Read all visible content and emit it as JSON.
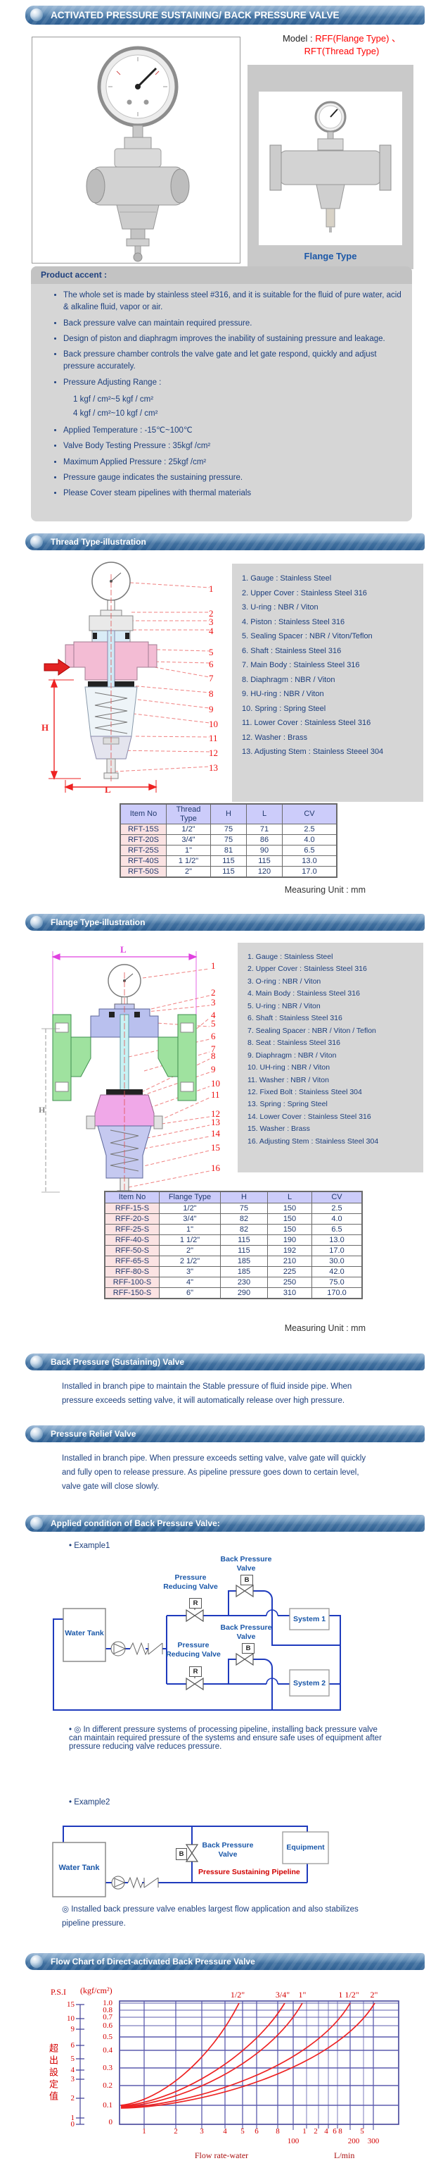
{
  "page": {
    "header": "ACTIVATED PRESSURE SUSTAINING/ BACK PRESSURE VALVE",
    "model_label": "Model :",
    "model_line1": "RFF(Flange Type) 、",
    "model_line2": "RFT(Thread Type)",
    "flange_caption": "Flange Type"
  },
  "colors": {
    "accent_red": "#ff0000",
    "text_blue": "#1d3f7d",
    "bar_blue": "#3f6f9f",
    "pipe_blue": "#1f3bbd",
    "grid_blue": "#5c5cad",
    "table_header_bg": "#ccccfa",
    "table_item_bg": "#fbe3e3"
  },
  "product_accent": {
    "header": "Product accent :",
    "bullets_top": [
      "The whole set is made by stainless steel #316, and it is suitable for the fluid of pure water, acid & alkaline fluid, vapor or air.",
      "Back pressure valve can maintain required pressure.",
      "Design of piston and diaphragm improves the inability of sustaining pressure and leakage.",
      "Back pressure chamber controls the valve gate and let gate respond, quickly and adjust pressure accurately.",
      "Pressure Adjusting Range :"
    ],
    "range_lines": [
      "1 kgf / cm²~5 kgf / cm²",
      "4 kgf / cm²~10 kgf / cm²"
    ],
    "bullets_bottom": [
      "Applied Temperature : -15℃~100℃",
      "Valve Body Testing Pressure : 35kgf /cm²",
      "Maximum Applied Pressure : 25kgf /cm²",
      "Pressure gauge indicates the sustaining pressure.",
      "Please Cover steam pipelines with thermal materials"
    ]
  },
  "thread_section": {
    "header": "Thread Type-illustration",
    "dim_h": "H",
    "dim_l": "L",
    "callouts": [
      "1",
      "2",
      "3",
      "4",
      "5",
      "6",
      "7",
      "8",
      "9",
      "10",
      "11",
      "12",
      "13"
    ],
    "parts": [
      "1. Gauge : Stainless Steel",
      "2. Upper Cover : Stainless Steel 316",
      "3. U-ring : NBR / Viton",
      "4. Piston : Stainless Steel 316",
      "5. Sealing Spacer : NBR / Viton/Teflon",
      "6. Shaft : Stainless Steel 316",
      "7. Main Body : Stainless Steel 316",
      "8. Diaphragm : NBR / Viton",
      "9. HU-ring : NBR / Viton",
      "10. Spring : Spring Steel",
      "11. Lower Cover : Stainless Steel 316",
      "12. Washer  : Brass",
      "13. Adjusting Stem : Stainless Steeel 304"
    ],
    "table": {
      "headers": [
        "Item No",
        "Thread Type",
        "H",
        "L",
        "CV"
      ],
      "rows": [
        [
          "RFT-15S",
          "1/2\"",
          "75",
          "71",
          "2.5"
        ],
        [
          "RFT-20S",
          "3/4\"",
          "75",
          "86",
          "4.0"
        ],
        [
          "RFT-25S",
          "1\"",
          "81",
          "90",
          "6.5"
        ],
        [
          "RFT-40S",
          "1 1/2\"",
          "115",
          "115",
          "13.0"
        ],
        [
          "RFT-50S",
          "2\"",
          "115",
          "120",
          "17.0"
        ]
      ]
    },
    "unit": "Measuring Unit : mm"
  },
  "flange_section": {
    "header": "Flange Type-illustration",
    "dim_h": "H",
    "dim_l": "L",
    "callouts": [
      "1",
      "2",
      "3",
      "4",
      "5",
      "6",
      "7",
      "8",
      "9",
      "10",
      "11",
      "12",
      "13",
      "14",
      "15",
      "16"
    ],
    "parts": [
      "1. Gauge : Stainless Steel",
      "2. Upper Cover : Stainless Steel 316",
      "3. O-ring : NBR / Viton",
      "4. Main Body : Stainless Steel 316",
      "5. U-ring : NBR / Viton",
      "6. Shaft : Stainless Steel 316",
      "7. Sealing Spacer : NBR / Viton / Teflon",
      "8. Seat : Stainless Steel 316",
      "9. Diaphragm : NBR / Viton",
      "10. UH-ring : NBR / Viton",
      "11. Washer : NBR / Viton",
      "12. Fixed Bolt : Stainless Steel 304",
      "13. Spring : Spring Steel",
      "14. Lower Cover : Stainless Steel 316",
      "15. Washer : Brass",
      "16. Adjusting Stem : Stainless Steel 304"
    ],
    "table": {
      "headers": [
        "Item No",
        "Flange Type",
        "H",
        "L",
        "CV"
      ],
      "rows": [
        [
          "RFF-15-S",
          "1/2\"",
          "75",
          "150",
          "2.5"
        ],
        [
          "RFF-20-S",
          "3/4\"",
          "82",
          "150",
          "4.0"
        ],
        [
          "RFF-25-S",
          "1\"",
          "82",
          "150",
          "6.5"
        ],
        [
          "RFF-40-S",
          "1 1/2\"",
          "115",
          "190",
          "13.0"
        ],
        [
          "RFF-50-S",
          "2\"",
          "115",
          "192",
          "17.0"
        ],
        [
          "RFF-65-S",
          "2 1/2\"",
          "185",
          "210",
          "30.0"
        ],
        [
          "RFF-80-S",
          "3\"",
          "185",
          "225",
          "42.0"
        ],
        [
          "RFF-100-S",
          "4\"",
          "230",
          "250",
          "75.0"
        ],
        [
          "RFF-150-S",
          "6\"",
          "290",
          "310",
          "170.0"
        ]
      ]
    },
    "unit": "Measuring Unit : mm"
  },
  "sustaining_valve": {
    "header": "Back Pressure (Sustaining) Valve",
    "text": "Installed in branch pipe to maintain the Stable pressure of fluid inside pipe. When pressure exceeds setting valve, it will automatically release over high pressure."
  },
  "relief_valve": {
    "header": "Pressure Relief Valve",
    "text": "Installed in branch pipe. When pressure exceeds setting valve, valve gate will quickly and fully open to release pressure. As pipeline pressure goes down to certain level, valve gate will close slowly."
  },
  "applied": {
    "header": "Applied condition of Back Pressure Valve:",
    "example1": "Example1",
    "example2": "Example2",
    "note1": "◎ In different pressure systems of processing pipeline, installing back pressure valve can maintain required pressure of the systems and ensure safe uses of equipment after pressure reducing valve reduces pressure.",
    "note2": "◎ Installed back pressure valve enables largest flow application and also stabilizes pipeline pressure.",
    "d1": {
      "water_tank": "Water Tank",
      "system1": "System 1",
      "system2": "System 2",
      "bpv": "Back Pressure Valve",
      "prv": "Pressure Reducing Valve",
      "b": "B",
      "r": "R"
    },
    "d2": {
      "water_tank": "Water Tank",
      "equipment": "Equipment",
      "bpv": "Back Pressure Valve",
      "pipeline": "Pressure Sustaining Pipeline",
      "b": "B"
    }
  },
  "flow_section": {
    "header": "Flow Chart of Direct-activated Back Pressure Valve"
  },
  "chart_data": {
    "type": "line",
    "title": "Flow Chart of Direct-activated Back Pressure Valve",
    "x_axis": {
      "label": "Flow rate-water",
      "unit": "L/min",
      "scale": "log",
      "range": [
        10,
        300
      ],
      "tick_labels_row1": [
        "1",
        "2",
        "3",
        "4",
        "5",
        "6",
        "8",
        "1",
        "2",
        "4",
        "6",
        "8",
        "5"
      ],
      "tick_labels_row2": [
        "100",
        "200",
        "300"
      ]
    },
    "y_axis_psi": {
      "label": "P.S.I",
      "ticks": [
        "15",
        "10",
        "9",
        "6",
        "5",
        "4",
        "3",
        "2",
        "1",
        "0"
      ]
    },
    "y_axis_kgf": {
      "label": "(kgf/cm²)",
      "scale": "log",
      "ticks": [
        "1.0",
        "0.8",
        "0.7",
        "0.6",
        "0.5",
        "0.4",
        "0.3",
        "0.2",
        "0.1",
        "0"
      ]
    },
    "y_label_cjk": "超出設定值",
    "curve_labels": [
      "1/2\"",
      "3/4\"",
      "1\"",
      "1 1/2\"",
      "2\""
    ],
    "grid": true,
    "series": [
      {
        "name": "1/2\"",
        "points": [
          [
            10,
            0.1
          ],
          [
            20,
            0.29
          ],
          [
            30,
            0.53
          ],
          [
            40,
            0.82
          ],
          [
            46,
            1.0
          ]
        ]
      },
      {
        "name": "3/4\"",
        "points": [
          [
            10,
            0.1
          ],
          [
            20,
            0.21
          ],
          [
            40,
            0.46
          ],
          [
            60,
            0.72
          ],
          [
            81,
            1.0
          ]
        ]
      },
      {
        "name": "1\"",
        "points": [
          [
            10,
            0.1
          ],
          [
            20,
            0.2
          ],
          [
            40,
            0.4
          ],
          [
            70,
            0.69
          ],
          [
            104,
            1.0
          ]
        ]
      },
      {
        "name": "1 1/2\"",
        "points": [
          [
            10,
            0.1
          ],
          [
            30,
            0.24
          ],
          [
            60,
            0.41
          ],
          [
            120,
            0.7
          ],
          [
            190,
            1.0
          ]
        ]
      },
      {
        "name": "2\"",
        "points": [
          [
            10,
            0.1
          ],
          [
            30,
            0.22
          ],
          [
            80,
            0.44
          ],
          [
            160,
            0.72
          ],
          [
            260,
            1.0
          ]
        ]
      }
    ]
  }
}
